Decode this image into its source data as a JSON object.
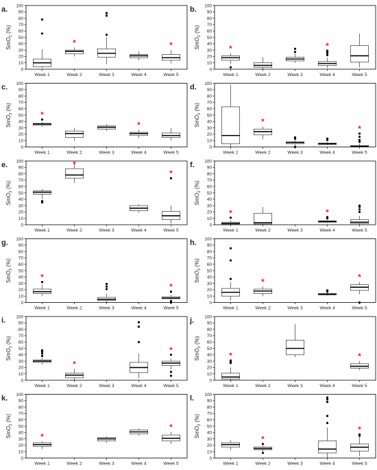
{
  "figure": {
    "y_axis_label": "SmO",
    "y_axis_label_subscript": "2",
    "y_axis_label_suffix": " (%)",
    "significance_marker": "*",
    "colors": {
      "box_stroke": "#333333",
      "median": "#000000",
      "panel_border": "#000000",
      "asterisk": "#e8231f",
      "outlier": "#000000",
      "text": "#222222"
    }
  },
  "chart_data": [
    {
      "id": "a.",
      "type": "boxplot",
      "categories": [
        "Week 1",
        "Week 2",
        "Week 3",
        "Week 4",
        "Week 5"
      ],
      "ylim": [
        0,
        100
      ],
      "yticks": [
        0,
        10,
        20,
        30,
        40,
        50,
        60,
        70,
        80,
        90,
        100
      ],
      "boxes": [
        {
          "q1": 4,
          "median": 10,
          "q3": 16,
          "whisker_low": 2,
          "whisker_high": 31,
          "outliers": [
            56,
            78
          ],
          "significant": false
        },
        {
          "q1": 24,
          "median": 28,
          "q3": 30,
          "whisker_low": 20,
          "whisker_high": 34,
          "outliers": [],
          "significant": true
        },
        {
          "q1": 19,
          "median": 25,
          "q3": 32,
          "whisker_low": 8,
          "whisker_high": 50,
          "outliers": [
            54,
            84,
            88
          ],
          "significant": false
        },
        {
          "q1": 18,
          "median": 21,
          "q3": 23,
          "whisker_low": 14,
          "whisker_high": 28,
          "outliers": [],
          "significant": false
        },
        {
          "q1": 14,
          "median": 18,
          "q3": 23,
          "whisker_low": 9,
          "whisker_high": 30,
          "outliers": [],
          "significant": true
        }
      ]
    },
    {
      "id": "b.",
      "type": "boxplot",
      "categories": [
        "Week 1",
        "Week 2",
        "Week 3",
        "Week 4",
        "Week 5"
      ],
      "ylim": [
        0,
        100
      ],
      "yticks": [
        0,
        10,
        20,
        30,
        40,
        50,
        60,
        70,
        80,
        90,
        100
      ],
      "boxes": [
        {
          "q1": 14,
          "median": 18,
          "q3": 21,
          "whisker_low": 8,
          "whisker_high": 25,
          "outliers": [
            3
          ],
          "significant": true
        },
        {
          "q1": 3,
          "median": 6,
          "q3": 10,
          "whisker_low": 0,
          "whisker_high": 19,
          "outliers": [],
          "significant": false
        },
        {
          "q1": 13,
          "median": 16,
          "q3": 19,
          "whisker_low": 10,
          "whisker_high": 24,
          "outliers": [
            27,
            32
          ],
          "significant": false
        },
        {
          "q1": 6,
          "median": 9,
          "q3": 12,
          "whisker_low": 2,
          "whisker_high": 18,
          "outliers": [
            22,
            25,
            27,
            29
          ],
          "significant": true
        },
        {
          "q1": 11,
          "median": 21,
          "q3": 37,
          "whisker_low": 3,
          "whisker_high": 56,
          "outliers": [],
          "significant": false
        }
      ]
    },
    {
      "id": "c.",
      "type": "boxplot",
      "categories": [
        "Week 1",
        "Week 2",
        "Week 3",
        "Week 4",
        "Week 5"
      ],
      "ylim": [
        0,
        100
      ],
      "yticks": [
        0,
        10,
        20,
        30,
        40,
        50,
        60,
        70,
        80,
        90,
        100
      ],
      "boxes": [
        {
          "q1": 34,
          "median": 36,
          "q3": 37,
          "whisker_low": 32,
          "whisker_high": 39,
          "outliers": [
            43
          ],
          "significant": true
        },
        {
          "q1": 15,
          "median": 21,
          "q3": 25,
          "whisker_low": 10,
          "whisker_high": 30,
          "outliers": [],
          "significant": false
        },
        {
          "q1": 28,
          "median": 31,
          "q3": 33,
          "whisker_low": 25,
          "whisker_high": 36,
          "outliers": [],
          "significant": false
        },
        {
          "q1": 18,
          "median": 21,
          "q3": 23,
          "whisker_low": 14,
          "whisker_high": 27,
          "outliers": [],
          "significant": true
        },
        {
          "q1": 15,
          "median": 18,
          "q3": 22,
          "whisker_low": 10,
          "whisker_high": 30,
          "outliers": [],
          "significant": false
        }
      ]
    },
    {
      "id": "d.",
      "type": "boxplot",
      "categories": [
        "Week 1",
        "Week 2",
        "Week 3",
        "Week 4",
        "Week 5"
      ],
      "ylim": [
        0,
        100
      ],
      "yticks": [
        0,
        10,
        20,
        30,
        40,
        50,
        60,
        70,
        80,
        90,
        100
      ],
      "boxes": [
        {
          "q1": 5,
          "median": 18,
          "q3": 63,
          "whisker_low": 0,
          "whisker_high": 98,
          "outliers": [],
          "significant": false
        },
        {
          "q1": 19,
          "median": 24,
          "q3": 28,
          "whisker_low": 12,
          "whisker_high": 32,
          "outliers": [],
          "significant": true
        },
        {
          "q1": 5,
          "median": 7,
          "q3": 8,
          "whisker_low": 2,
          "whisker_high": 11,
          "outliers": [
            0,
            13,
            15
          ],
          "significant": false
        },
        {
          "q1": 4,
          "median": 5,
          "q3": 6,
          "whisker_low": 3,
          "whisker_high": 8,
          "outliers": [
            11,
            13
          ],
          "significant": false
        },
        {
          "q1": 0,
          "median": 1,
          "q3": 2,
          "whisker_low": 0,
          "whisker_high": 5,
          "outliers": [
            8,
            11,
            16,
            21
          ],
          "significant": true
        }
      ]
    },
    {
      "id": "e.",
      "type": "boxplot",
      "categories": [
        "Week 1",
        "Week 2",
        "Week 3",
        "Week 4",
        "Week 5"
      ],
      "ylim": [
        0,
        100
      ],
      "yticks": [
        0,
        10,
        20,
        30,
        40,
        50,
        60,
        70,
        80,
        90,
        100
      ],
      "boxes": [
        {
          "q1": 48,
          "median": 51,
          "q3": 53,
          "whisker_low": 40,
          "whisker_high": 56,
          "outliers": [
            35,
            37
          ],
          "significant": false
        },
        {
          "q1": 73,
          "median": 78,
          "q3": 88,
          "whisker_low": 66,
          "whisker_high": 95,
          "outliers": [],
          "significant": true
        },
        null,
        {
          "q1": 22,
          "median": 26,
          "q3": 30,
          "whisker_low": 19,
          "whisker_high": 32,
          "outliers": [],
          "significant": false
        },
        {
          "q1": 8,
          "median": 14,
          "q3": 21,
          "whisker_low": 2,
          "whisker_high": 30,
          "outliers": [
            73
          ],
          "significant": true
        }
      ]
    },
    {
      "id": "f.",
      "type": "boxplot",
      "categories": [
        "Week 1",
        "Week 2",
        "Week 3",
        "Week 4",
        "Week 5"
      ],
      "ylim": [
        0,
        100
      ],
      "yticks": [
        0,
        10,
        20,
        30,
        40,
        50,
        60,
        70,
        80,
        90,
        100
      ],
      "boxes": [
        {
          "q1": 1,
          "median": 2,
          "q3": 4,
          "whisker_low": 0,
          "whisker_high": 7,
          "outliers": [
            11
          ],
          "significant": true
        },
        {
          "q1": 1,
          "median": 3,
          "q3": 18,
          "whisker_low": 0,
          "whisker_high": 28,
          "outliers": [],
          "significant": false
        },
        null,
        {
          "q1": 4,
          "median": 5,
          "q3": 6,
          "whisker_low": 3,
          "whisker_high": 7,
          "outliers": [
            10,
            12
          ],
          "significant": true
        },
        {
          "q1": 2,
          "median": 4,
          "q3": 8,
          "whisker_low": 0,
          "whisker_high": 14,
          "outliers": [
            20,
            24,
            28,
            30
          ],
          "significant": false
        }
      ]
    },
    {
      "id": "g.",
      "type": "boxplot",
      "categories": [
        "Week 1",
        "Week 2",
        "Week 3",
        "Week 4",
        "Week 5"
      ],
      "ylim": [
        0,
        100
      ],
      "yticks": [
        0,
        10,
        20,
        30,
        40,
        50,
        60,
        70,
        80,
        90,
        100
      ],
      "boxes": [
        {
          "q1": 14,
          "median": 17,
          "q3": 21,
          "whisker_low": 10,
          "whisker_high": 28,
          "outliers": [
            32
          ],
          "significant": true
        },
        null,
        {
          "q1": 3,
          "median": 5,
          "q3": 8,
          "whisker_low": 0,
          "whisker_high": 14,
          "outliers": [
            21,
            25,
            29
          ],
          "significant": false
        },
        null,
        {
          "q1": 6,
          "median": 7,
          "q3": 9,
          "whisker_low": 3,
          "whisker_high": 12,
          "outliers": [
            0,
            2,
            17
          ],
          "significant": true
        }
      ]
    },
    {
      "id": "h.",
      "type": "boxplot",
      "categories": [
        "Week 1",
        "Week 2",
        "Week 3",
        "Week 4",
        "Week 5"
      ],
      "ylim": [
        0,
        100
      ],
      "yticks": [
        0,
        10,
        20,
        30,
        40,
        50,
        60,
        70,
        80,
        90,
        100
      ],
      "boxes": [
        {
          "q1": 10,
          "median": 16,
          "q3": 22,
          "whisker_low": 3,
          "whisker_high": 32,
          "outliers": [
            37,
            66,
            85
          ],
          "significant": false
        },
        {
          "q1": 14,
          "median": 18,
          "q3": 21,
          "whisker_low": 10,
          "whisker_high": 25,
          "outliers": [],
          "significant": true
        },
        null,
        {
          "q1": 12,
          "median": 13,
          "q3": 14,
          "whisker_low": 11,
          "whisker_high": 15,
          "outliers": [
            17,
            19
          ],
          "significant": false
        },
        {
          "q1": 19,
          "median": 24,
          "q3": 28,
          "whisker_low": 13,
          "whisker_high": 32,
          "outliers": [
            0
          ],
          "significant": true
        }
      ]
    },
    {
      "id": "i.",
      "type": "boxplot",
      "categories": [
        "Week 1",
        "Week 2",
        "Week 3",
        "Week 4",
        "Week 5"
      ],
      "ylim": [
        0,
        100
      ],
      "yticks": [
        0,
        10,
        20,
        30,
        40,
        50,
        60,
        70,
        80,
        90,
        100
      ],
      "boxes": [
        {
          "q1": 28,
          "median": 30,
          "q3": 32,
          "whisker_low": 25,
          "whisker_high": 35,
          "outliers": [
            38,
            42,
            45,
            47
          ],
          "significant": false
        },
        {
          "q1": 4,
          "median": 8,
          "q3": 11,
          "whisker_low": 0,
          "whisker_high": 18,
          "outliers": [],
          "significant": true
        },
        null,
        {
          "q1": 12,
          "median": 20,
          "q3": 28,
          "whisker_low": 3,
          "whisker_high": 42,
          "outliers": [
            60,
            84,
            91
          ],
          "significant": false
        },
        {
          "q1": 23,
          "median": 27,
          "q3": 30,
          "whisker_low": 17,
          "whisker_high": 34,
          "outliers": [
            7,
            13,
            40
          ],
          "significant": true
        }
      ]
    },
    {
      "id": "j.",
      "type": "boxplot",
      "categories": [
        "Week 1",
        "Week 2",
        "Week 3",
        "Week 4",
        "Week 5"
      ],
      "ylim": [
        0,
        100
      ],
      "yticks": [
        0,
        10,
        20,
        30,
        40,
        50,
        60,
        70,
        80,
        90,
        100
      ],
      "boxes": [
        {
          "q1": 2,
          "median": 5,
          "q3": 11,
          "whisker_low": 0,
          "whisker_high": 20,
          "outliers": [
            27,
            29,
            31
          ],
          "significant": true
        },
        null,
        {
          "q1": 40,
          "median": 50,
          "q3": 63,
          "whisker_low": 36,
          "whisker_high": 88,
          "outliers": [],
          "significant": false
        },
        null,
        {
          "q1": 19,
          "median": 22,
          "q3": 26,
          "whisker_low": 16,
          "whisker_high": 30,
          "outliers": [],
          "significant": true
        }
      ]
    },
    {
      "id": "k.",
      "type": "boxplot",
      "categories": [
        "Week 1",
        "Week 2",
        "Week 3",
        "Week 4",
        "Week 5"
      ],
      "ylim": [
        0,
        100
      ],
      "yticks": [
        0,
        10,
        20,
        30,
        40,
        50,
        60,
        70,
        80,
        90,
        100
      ],
      "boxes": [
        {
          "q1": 18,
          "median": 21,
          "q3": 24,
          "whisker_low": 14,
          "whisker_high": 26,
          "outliers": [],
          "significant": true
        },
        null,
        {
          "q1": 27,
          "median": 30,
          "q3": 32,
          "whisker_low": 24,
          "whisker_high": 34,
          "outliers": [],
          "significant": false
        },
        {
          "q1": 38,
          "median": 41,
          "q3": 44,
          "whisker_low": 35,
          "whisker_high": 46,
          "outliers": [],
          "significant": false
        },
        {
          "q1": 27,
          "median": 31,
          "q3": 36,
          "whisker_low": 22,
          "whisker_high": 41,
          "outliers": [],
          "significant": true
        }
      ]
    },
    {
      "id": "l.",
      "type": "boxplot",
      "categories": [
        "Week 1",
        "Week 2",
        "Week 3",
        "Week 4",
        "Week 5"
      ],
      "ylim": [
        0,
        100
      ],
      "yticks": [
        0,
        10,
        20,
        30,
        40,
        50,
        60,
        70,
        80,
        90,
        100
      ],
      "boxes": [
        {
          "q1": 17,
          "median": 21,
          "q3": 24,
          "whisker_low": 12,
          "whisker_high": 28,
          "outliers": [],
          "significant": false
        },
        {
          "q1": 13,
          "median": 15,
          "q3": 17,
          "whisker_low": 10,
          "whisker_high": 19,
          "outliers": [
            8,
            22
          ],
          "significant": true
        },
        null,
        {
          "q1": 8,
          "median": 14,
          "q3": 27,
          "whisker_low": 0,
          "whisker_high": 48,
          "outliers": [
            55,
            66,
            88,
            92,
            95
          ],
          "significant": false
        },
        {
          "q1": 11,
          "median": 17,
          "q3": 22,
          "whisker_low": 3,
          "whisker_high": 33,
          "outliers": [
            35,
            37
          ],
          "significant": true
        }
      ]
    }
  ]
}
